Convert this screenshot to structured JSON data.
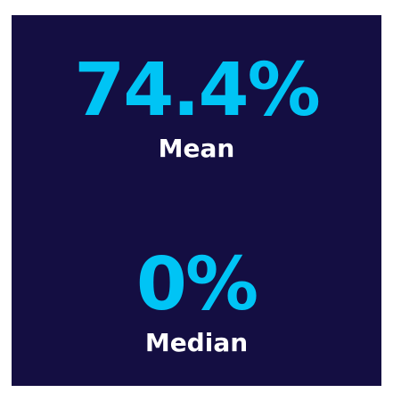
{
  "stats": [
    {
      "value": "74.4%",
      "label": "Mean"
    },
    {
      "value": "0%",
      "label": "Median"
    }
  ]
}
